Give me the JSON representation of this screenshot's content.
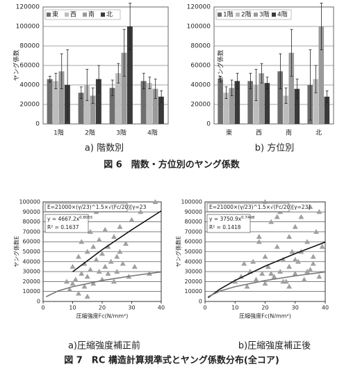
{
  "chart_data": [
    {
      "type": "bar",
      "y_label": "ヤング係数",
      "categories": [
        "1階",
        "2階",
        "3階",
        "4階"
      ],
      "series": [
        {
          "name": "東",
          "color": "#6e6e6e",
          "values": [
            46000,
            32000,
            37000,
            44000
          ],
          "errors": [
            3000,
            6000,
            8000,
            8000
          ]
        },
        {
          "name": "西",
          "color": "#bdbdbd",
          "values": [
            44000,
            40000,
            52000,
            42000
          ],
          "errors": [
            8000,
            16000,
            10000,
            6000
          ]
        },
        {
          "name": "南",
          "color": "#9a9a9a",
          "values": [
            54000,
            29000,
            73000,
            36000
          ],
          "errors": [
            18000,
            8000,
            24000,
            10000
          ]
        },
        {
          "name": "北",
          "color": "#3a3a3a",
          "values": [
            40000,
            46000,
            100000,
            28000
          ],
          "errors": [
            36000,
            14000,
            24000,
            6000
          ]
        }
      ],
      "ylim": [
        0,
        120000
      ],
      "yticks": [
        0,
        20000,
        40000,
        60000,
        80000,
        100000,
        120000
      ],
      "grid": true
    },
    {
      "type": "bar",
      "y_label": "ヤング係数",
      "categories": [
        "東",
        "西",
        "南",
        "北"
      ],
      "series": [
        {
          "name": "1階",
          "color": "#6e6e6e",
          "values": [
            46000,
            44000,
            54000,
            40000
          ],
          "errors": [
            3000,
            8000,
            18000,
            36000
          ]
        },
        {
          "name": "2階",
          "color": "#bdbdbd",
          "values": [
            32000,
            40000,
            29000,
            46000
          ],
          "errors": [
            6000,
            16000,
            8000,
            14000
          ]
        },
        {
          "name": "3階",
          "color": "#9a9a9a",
          "values": [
            37000,
            52000,
            73000,
            100000
          ],
          "errors": [
            8000,
            10000,
            24000,
            24000
          ]
        },
        {
          "name": "4階",
          "color": "#3a3a3a",
          "values": [
            44000,
            42000,
            36000,
            28000
          ],
          "errors": [
            8000,
            6000,
            10000,
            6000
          ]
        }
      ],
      "ylim": [
        0,
        120000
      ],
      "yticks": [
        0,
        20000,
        40000,
        60000,
        80000,
        100000,
        120000
      ],
      "grid": true
    },
    {
      "type": "scatter",
      "x_label": "圧縮強度Fc(N/mm²)",
      "y_label": "ヤング係数E",
      "formula": "E=21000×(γ/23)^1.5×√(Fc/20)[γ=23",
      "trend_label": "y = 4667.2x",
      "trend_exponent": "0.8055",
      "r2_label": "R² = 0.1637",
      "color": "#a0a0a0",
      "x": [
        8,
        9,
        10,
        10,
        11,
        12,
        12,
        13,
        13,
        14,
        14,
        15,
        15,
        16,
        16,
        17,
        17,
        18,
        18,
        19,
        19,
        20,
        20,
        21,
        21,
        22,
        22,
        23,
        23,
        24,
        24,
        25,
        25,
        26,
        26,
        27,
        28,
        29,
        30,
        31,
        33,
        36,
        38,
        12,
        15
      ],
      "values": [
        20000,
        12000,
        18000,
        35000,
        22000,
        45000,
        8000,
        28000,
        60000,
        15000,
        38000,
        50000,
        25000,
        70000,
        32000,
        18000,
        55000,
        42000,
        90000,
        30000,
        62000,
        22000,
        48000,
        72000,
        35000,
        28000,
        55000,
        95000,
        40000,
        20000,
        65000,
        45000,
        30000,
        75000,
        50000,
        38000,
        58000,
        25000,
        82000,
        35000,
        90000,
        28000,
        100000,
        72000,
        5000
      ],
      "lines": [
        {
          "color": "#111111",
          "x": [
            10,
            20,
            30,
            40
          ],
          "values": [
            29800,
            52000,
            72000,
            91000
          ]
        },
        {
          "color": "#777777",
          "x": [
            1,
            5,
            10,
            20,
            30,
            40
          ],
          "values": [
            4700,
            10500,
            14850,
            21000,
            25700,
            29700
          ]
        }
      ],
      "xlim": [
        0,
        40
      ],
      "xticks": [
        0,
        10,
        20,
        30,
        40
      ],
      "ylim": [
        0,
        100000
      ],
      "yticks": [
        0,
        10000,
        20000,
        30000,
        40000,
        50000,
        60000,
        70000,
        80000,
        90000,
        100000
      ],
      "grid": true
    },
    {
      "type": "scatter",
      "x_label": "圧縮強度Fc(N/mm²)",
      "y_label": "ヤング係数E",
      "formula": "E=21000×(γ/23)^1.5×√(Fc/20)[γ=23]",
      "trend_label": "y = 3750.9x",
      "trend_exponent": "0.7498",
      "r2_label": "R² = 0.1418",
      "color": "#a0a0a0",
      "x": [
        10,
        12,
        14,
        15,
        16,
        17,
        18,
        19,
        20,
        20,
        21,
        22,
        23,
        24,
        25,
        25,
        26,
        27,
        28,
        28,
        29,
        30,
        30,
        31,
        32,
        33,
        34,
        35,
        35,
        36,
        37,
        38,
        38,
        39,
        13,
        18,
        22,
        26,
        30,
        34,
        24,
        28,
        32,
        36,
        20
      ],
      "values": [
        20000,
        25000,
        15000,
        30000,
        40000,
        22000,
        60000,
        28000,
        18000,
        45000,
        35000,
        80000,
        25000,
        55000,
        30000,
        90000,
        42000,
        20000,
        65000,
        35000,
        50000,
        28000,
        75000,
        40000,
        85000,
        22000,
        60000,
        32000,
        95000,
        45000,
        70000,
        25000,
        90000,
        55000,
        38000,
        65000,
        28000,
        20000,
        42000,
        30000,
        85000,
        15000,
        50000,
        38000,
        100000
      ],
      "lines": [
        {
          "color": "#111111",
          "x": [
            1,
            5,
            10,
            20,
            30,
            40
          ],
          "values": [
            3750,
            12500,
            21100,
            35500,
            48100,
            59600
          ]
        },
        {
          "color": "#777777",
          "x": [
            1,
            5,
            10,
            20,
            30,
            40
          ],
          "values": [
            4700,
            10500,
            14850,
            21000,
            25700,
            29700
          ]
        }
      ],
      "xlim": [
        0,
        40
      ],
      "xticks": [
        0,
        10,
        20,
        30,
        40
      ],
      "ylim": [
        0,
        100000
      ],
      "yticks": [
        0,
        10000,
        20000,
        30000,
        40000,
        50000,
        60000,
        70000,
        80000,
        90000,
        100000
      ],
      "grid": true
    }
  ],
  "captions": [
    "a) 階数別",
    "b) 方位別",
    "図 6　階数・方位別のヤング係数",
    "a)圧縮強度補正前",
    "b)圧縮強度補正後",
    "図 7　RC 構造計算規準式とヤング係数分布(全コア)"
  ]
}
